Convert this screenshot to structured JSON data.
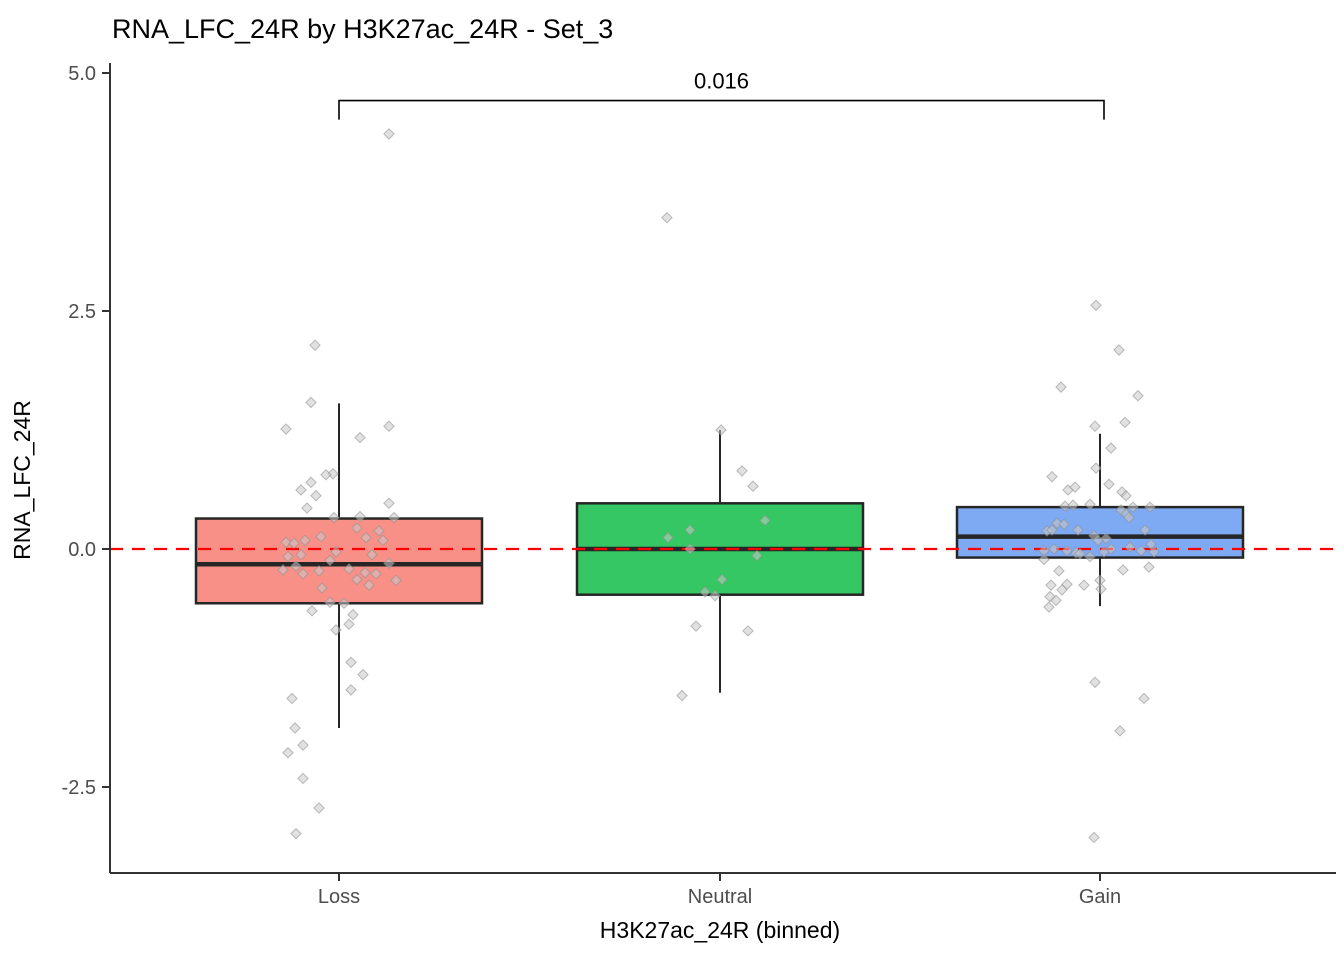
{
  "title": "RNA_LFC_24R by H3K27ac_24R - Set_3",
  "chart_data": {
    "type": "boxplot",
    "title": "RNA_LFC_24R by H3K27ac_24R - Set_3",
    "xlabel": "H3K27ac_24R (binned)",
    "ylabel": "RNA_LFC_24R",
    "categories": [
      "Loss",
      "Neutral",
      "Gain"
    ],
    "colors": {
      "Loss": "#F89088",
      "Neutral": "#34C763",
      "Gain": "#7EA9F3"
    },
    "box_stroke_color": "#262626",
    "axis_color": "#333333",
    "tick_text_color": "#4d4d4d",
    "ylim": [
      -3.4,
      5.0
    ],
    "yticks": [
      "5.0",
      "2.5",
      "0.0",
      "-2.5"
    ],
    "grid": "off",
    "legend": "none",
    "reference_line": {
      "y": 0.0,
      "color": "#FF0000",
      "style": "dashed"
    },
    "significance": {
      "label": "0.016",
      "from": "Loss",
      "to": "Gain",
      "bar_y": 4.71,
      "drop": 0.2
    },
    "boxes": [
      {
        "category": "Loss",
        "whisker_low": -1.88,
        "q1": -0.57,
        "median": -0.16,
        "q3": 0.32,
        "whisker_high": 1.53
      },
      {
        "category": "Neutral",
        "whisker_low": -1.51,
        "q1": -0.48,
        "median": 0.0,
        "q3": 0.48,
        "whisker_high": 1.25
      },
      {
        "category": "Gain",
        "whisker_low": -0.6,
        "q1": -0.09,
        "median": 0.13,
        "q3": 0.44,
        "whisker_high": 1.21
      }
    ],
    "points": {
      "Loss": [
        [
          50,
          4.36
        ],
        [
          -24,
          2.14
        ],
        [
          -28,
          1.54
        ],
        [
          -53,
          1.26
        ],
        [
          50,
          1.29
        ],
        [
          21,
          1.17
        ],
        [
          -6,
          0.79
        ],
        [
          -13,
          0.78
        ],
        [
          -28,
          0.7
        ],
        [
          -38,
          0.62
        ],
        [
          -23,
          0.56
        ],
        [
          -32,
          0.43
        ],
        [
          50,
          0.48
        ],
        [
          -5,
          0.33
        ],
        [
          21,
          0.34
        ],
        [
          55,
          0.33
        ],
        [
          18,
          0.22
        ],
        [
          40,
          0.19
        ],
        [
          27,
          0.12
        ],
        [
          44,
          0.09
        ],
        [
          -53,
          0.07
        ],
        [
          -45,
          0.06
        ],
        [
          -34,
          0.09
        ],
        [
          -18,
          0.13
        ],
        [
          -3,
          -0.03
        ],
        [
          -51,
          -0.08
        ],
        [
          -38,
          -0.06
        ],
        [
          -9,
          -0.12
        ],
        [
          33,
          -0.06
        ],
        [
          50,
          -0.15
        ],
        [
          -43,
          -0.18
        ],
        [
          -56,
          -0.22
        ],
        [
          -36,
          -0.26
        ],
        [
          -20,
          -0.23
        ],
        [
          10,
          -0.21
        ],
        [
          26,
          -0.25
        ],
        [
          37,
          -0.26
        ],
        [
          18,
          -0.32
        ],
        [
          30,
          -0.38
        ],
        [
          57,
          -0.33
        ],
        [
          -17,
          -0.41
        ],
        [
          -9,
          -0.56
        ],
        [
          5,
          -0.57
        ],
        [
          -27,
          -0.65
        ],
        [
          14,
          -0.69
        ],
        [
          10,
          -0.79
        ],
        [
          -3,
          -0.85
        ],
        [
          12,
          -1.19
        ],
        [
          24,
          -1.32
        ],
        [
          12,
          -1.48
        ],
        [
          -47,
          -1.57
        ],
        [
          -44,
          -1.88
        ],
        [
          -36,
          -2.06
        ],
        [
          -51,
          -2.14
        ],
        [
          -36,
          -2.41
        ],
        [
          -20,
          -2.72
        ],
        [
          -43,
          -2.99
        ]
      ],
      "Neutral": [
        [
          -53,
          3.48
        ],
        [
          1,
          1.25
        ],
        [
          22,
          0.82
        ],
        [
          33,
          0.66
        ],
        [
          45,
          0.3
        ],
        [
          -30,
          0.2
        ],
        [
          -52,
          0.12
        ],
        [
          -30,
          0.0
        ],
        [
          37,
          -0.07
        ],
        [
          2,
          -0.32
        ],
        [
          -15,
          -0.45
        ],
        [
          -5,
          -0.49
        ],
        [
          -24,
          -0.81
        ],
        [
          28,
          -0.86
        ],
        [
          -38,
          -1.54
        ]
      ],
      "Gain": [
        [
          -4,
          2.56
        ],
        [
          19,
          2.09
        ],
        [
          -39,
          1.7
        ],
        [
          38,
          1.61
        ],
        [
          -5,
          1.29
        ],
        [
          25,
          1.33
        ],
        [
          11,
          1.06
        ],
        [
          -4,
          0.85
        ],
        [
          -48,
          0.76
        ],
        [
          -32,
          0.62
        ],
        [
          -25,
          0.65
        ],
        [
          9,
          0.68
        ],
        [
          22,
          0.6
        ],
        [
          26,
          0.56
        ],
        [
          -35,
          0.45
        ],
        [
          -27,
          0.46
        ],
        [
          -10,
          0.47
        ],
        [
          33,
          0.44
        ],
        [
          50,
          0.44
        ],
        [
          21,
          0.41
        ],
        [
          26,
          0.37
        ],
        [
          29,
          0.33
        ],
        [
          -43,
          0.27
        ],
        [
          -36,
          0.26
        ],
        [
          -53,
          0.19
        ],
        [
          -48,
          0.2
        ],
        [
          -22,
          0.2
        ],
        [
          -6,
          0.14
        ],
        [
          -2,
          0.09
        ],
        [
          6,
          0.11
        ],
        [
          45,
          0.2
        ],
        [
          -56,
          -0.02
        ],
        [
          -46,
          0.0
        ],
        [
          -33,
          -0.02
        ],
        [
          -24,
          -0.04
        ],
        [
          -20,
          -0.05
        ],
        [
          -10,
          -0.08
        ],
        [
          4,
          -0.03
        ],
        [
          11,
          0.0
        ],
        [
          30,
          0.02
        ],
        [
          41,
          -0.02
        ],
        [
          51,
          0.05
        ],
        [
          54,
          -0.03
        ],
        [
          -56,
          -0.11
        ],
        [
          -41,
          -0.23
        ],
        [
          23,
          -0.22
        ],
        [
          49,
          -0.19
        ],
        [
          -49,
          -0.38
        ],
        [
          -33,
          -0.37
        ],
        [
          -16,
          -0.38
        ],
        [
          -38,
          -0.43
        ],
        [
          -50,
          -0.5
        ],
        [
          -44,
          -0.54
        ],
        [
          -51,
          -0.61
        ],
        [
          0,
          -0.33
        ],
        [
          1,
          -0.42
        ],
        [
          -5,
          -1.4
        ],
        [
          44,
          -1.57
        ],
        [
          20,
          -1.91
        ],
        [
          -6,
          -3.03
        ]
      ]
    }
  }
}
